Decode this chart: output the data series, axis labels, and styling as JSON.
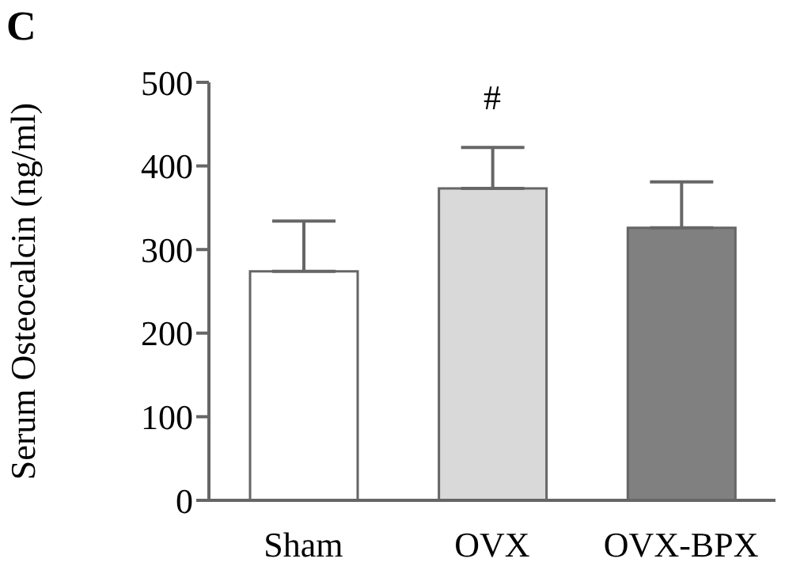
{
  "chart_data": {
    "type": "bar",
    "ylabel": "Serum Osteocalcin (ng/ml)",
    "categories": [
      "Sham",
      "OVX",
      "OVX-BPX"
    ],
    "values": [
      274,
      373,
      326
    ],
    "colors": [
      "#ffffff",
      "#d9d9d9",
      "#808080"
    ],
    "errors": [
      [
        274,
        334
      ],
      [
        373,
        422
      ],
      [
        326,
        381
      ]
    ],
    "ylim": [
      0,
      500
    ],
    "yticks": [
      0,
      100,
      200,
      300,
      400,
      500
    ],
    "grid": false,
    "legend": false,
    "annotations": [
      "C",
      {
        "text": "#",
        "x": "OVX",
        "y": 422
      }
    ]
  }
}
